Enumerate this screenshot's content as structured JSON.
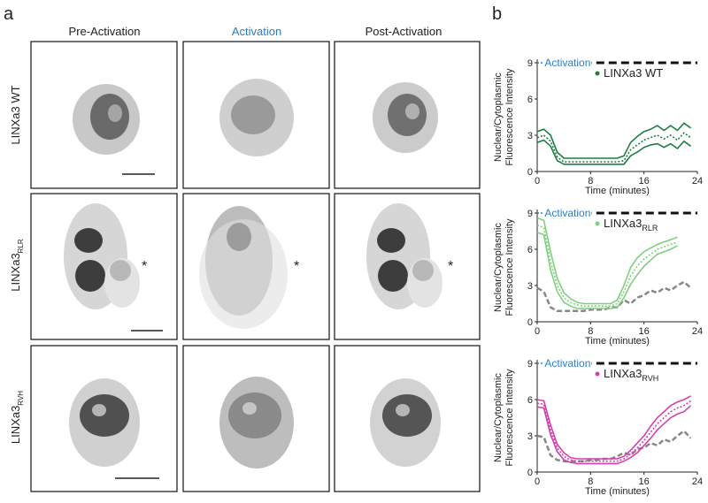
{
  "figure": {
    "panel_a": "a",
    "panel_b": "b",
    "columns": [
      "Pre-Activation",
      "Activation",
      "Post-Activation"
    ],
    "rows": [
      {
        "label": "LINXa3 WT"
      },
      {
        "label": "LINXa3",
        "sub": "RLR",
        "asterisk": "*"
      },
      {
        "label": "LINXa3",
        "sub": "RVH"
      }
    ]
  },
  "chart_data": [
    {
      "type": "line",
      "ylabel": [
        "Nuclear/Cytoplasmic",
        "Fluorescence Intensity"
      ],
      "xlabel": "Time (minutes)",
      "annotation": "Activation",
      "activation_end": 7,
      "xlim": [
        0,
        24
      ],
      "ylim": [
        0,
        9
      ],
      "xticks": [
        0,
        8,
        16,
        24
      ],
      "yticks": [
        0,
        3,
        6,
        9
      ],
      "x": [
        0,
        1,
        2,
        3,
        4,
        5,
        6,
        7,
        8,
        9,
        10,
        11,
        12,
        13,
        14,
        15,
        16,
        17,
        18,
        19,
        20,
        21,
        22,
        23
      ],
      "series": [
        {
          "name": "LINXa3 WT",
          "color": "#1b7f3f",
          "dash": "dotted",
          "values": [
            2.8,
            3.0,
            2.5,
            1.2,
            0.8,
            0.8,
            0.8,
            0.8,
            0.8,
            0.8,
            0.8,
            0.8,
            0.8,
            0.9,
            1.8,
            2.2,
            2.6,
            2.8,
            3.0,
            2.7,
            3.0,
            2.6,
            3.2,
            2.8
          ]
        },
        {
          "color": "#1b7f3f",
          "dash": "solid",
          "values": [
            3.3,
            3.5,
            3.0,
            1.6,
            1.1,
            1.1,
            1.1,
            1.1,
            1.1,
            1.1,
            1.1,
            1.1,
            1.1,
            1.3,
            2.4,
            2.9,
            3.3,
            3.5,
            3.8,
            3.4,
            3.8,
            3.4,
            4.0,
            3.6
          ]
        },
        {
          "color": "#1b7f3f",
          "dash": "solid",
          "values": [
            2.4,
            2.6,
            2.1,
            0.9,
            0.6,
            0.6,
            0.6,
            0.6,
            0.6,
            0.6,
            0.6,
            0.6,
            0.6,
            0.6,
            1.3,
            1.6,
            2.0,
            2.2,
            2.3,
            2.0,
            2.3,
            1.9,
            2.5,
            2.1
          ]
        }
      ]
    },
    {
      "type": "line",
      "ylabel": [
        "Nuclear/Cytoplasmic",
        "Fluorescence Intensity"
      ],
      "xlabel": "Time (minutes)",
      "annotation": "Activation",
      "activation_end": 7,
      "xlim": [
        0,
        24
      ],
      "ylim": [
        0,
        9
      ],
      "xticks": [
        0,
        8,
        16,
        24
      ],
      "yticks": [
        0,
        3,
        6,
        9
      ],
      "x": [
        0,
        1,
        2,
        3,
        4,
        5,
        6,
        7,
        8,
        9,
        10,
        11,
        12,
        13,
        14,
        15,
        16,
        17,
        18,
        19,
        20,
        21,
        22,
        23
      ],
      "series": [
        {
          "name": "LINXa3",
          "name_sub": "RLR",
          "color": "#7fcf7f",
          "dash": "dotted",
          "values": [
            8.0,
            7.8,
            5.0,
            3.0,
            2.0,
            1.6,
            1.4,
            1.3,
            1.3,
            1.3,
            1.3,
            1.3,
            1.5,
            2.5,
            3.8,
            4.6,
            5.2,
            5.6,
            6.0,
            6.2,
            6.4,
            6.6,
            null,
            null
          ]
        },
        {
          "color": "#7fcf7f",
          "dash": "solid",
          "values": [
            8.6,
            8.4,
            5.8,
            3.6,
            2.4,
            1.9,
            1.6,
            1.5,
            1.5,
            1.5,
            1.5,
            1.5,
            1.8,
            3.0,
            4.5,
            5.3,
            5.8,
            6.1,
            6.4,
            6.6,
            6.8,
            7.0,
            null,
            null
          ]
        },
        {
          "color": "#7fcf7f",
          "dash": "solid",
          "values": [
            7.4,
            7.2,
            4.3,
            2.5,
            1.6,
            1.3,
            1.1,
            1.1,
            1.1,
            1.1,
            1.1,
            1.1,
            1.2,
            2.0,
            3.1,
            3.9,
            4.6,
            5.1,
            5.6,
            5.8,
            6.0,
            6.3,
            null,
            null
          ]
        },
        {
          "color": "#888888",
          "dash": "dashed",
          "values": [
            2.8,
            2.5,
            1.2,
            0.9,
            0.9,
            0.9,
            0.9,
            0.9,
            1.0,
            1.0,
            1.0,
            1.2,
            1.2,
            1.8,
            1.5,
            2.0,
            2.2,
            2.6,
            2.4,
            2.8,
            2.6,
            3.0,
            3.3,
            2.8
          ]
        }
      ]
    },
    {
      "type": "line",
      "ylabel": [
        "Nuclear/Cytoplasmic",
        "Fluorescence Intensity"
      ],
      "xlabel": "Time (minutes)",
      "annotation": "Activation",
      "activation_end": 7,
      "xlim": [
        0,
        24
      ],
      "ylim": [
        0,
        9
      ],
      "xticks": [
        0,
        8,
        16,
        24
      ],
      "yticks": [
        0,
        3,
        6,
        9
      ],
      "x": [
        0,
        1,
        2,
        3,
        4,
        5,
        6,
        7,
        8,
        9,
        10,
        11,
        12,
        13,
        14,
        15,
        16,
        17,
        18,
        19,
        20,
        21,
        22,
        23
      ],
      "series": [
        {
          "name": "LINXa3",
          "name_sub": "RVH",
          "color": "#d63fae",
          "dash": "dotted",
          "values": [
            5.7,
            5.6,
            3.5,
            2.0,
            1.3,
            1.0,
            0.9,
            0.9,
            0.9,
            0.9,
            0.9,
            0.9,
            0.9,
            1.1,
            1.5,
            2.0,
            2.6,
            3.3,
            4.0,
            4.5,
            5.0,
            5.3,
            5.5,
            5.9
          ]
        },
        {
          "color": "#d63fae",
          "dash": "solid",
          "values": [
            6.0,
            5.9,
            3.9,
            2.3,
            1.6,
            1.2,
            1.1,
            1.1,
            1.1,
            1.1,
            1.1,
            1.1,
            1.1,
            1.3,
            1.8,
            2.4,
            3.0,
            3.8,
            4.5,
            5.0,
            5.5,
            5.8,
            6.0,
            6.3
          ]
        },
        {
          "color": "#d63fae",
          "dash": "solid",
          "values": [
            5.4,
            5.3,
            3.1,
            1.7,
            1.0,
            0.8,
            0.7,
            0.7,
            0.7,
            0.7,
            0.7,
            0.7,
            0.7,
            0.9,
            1.2,
            1.6,
            2.2,
            2.8,
            3.5,
            4.0,
            4.5,
            4.8,
            5.0,
            5.5
          ]
        },
        {
          "color": "#888888",
          "dash": "dashed",
          "values": [
            3.0,
            2.9,
            1.4,
            1.0,
            0.9,
            0.9,
            0.9,
            0.9,
            1.0,
            1.0,
            1.1,
            1.1,
            1.3,
            1.6,
            1.4,
            1.9,
            2.0,
            2.4,
            2.2,
            2.7,
            2.5,
            3.0,
            3.4,
            2.8
          ]
        }
      ]
    }
  ]
}
